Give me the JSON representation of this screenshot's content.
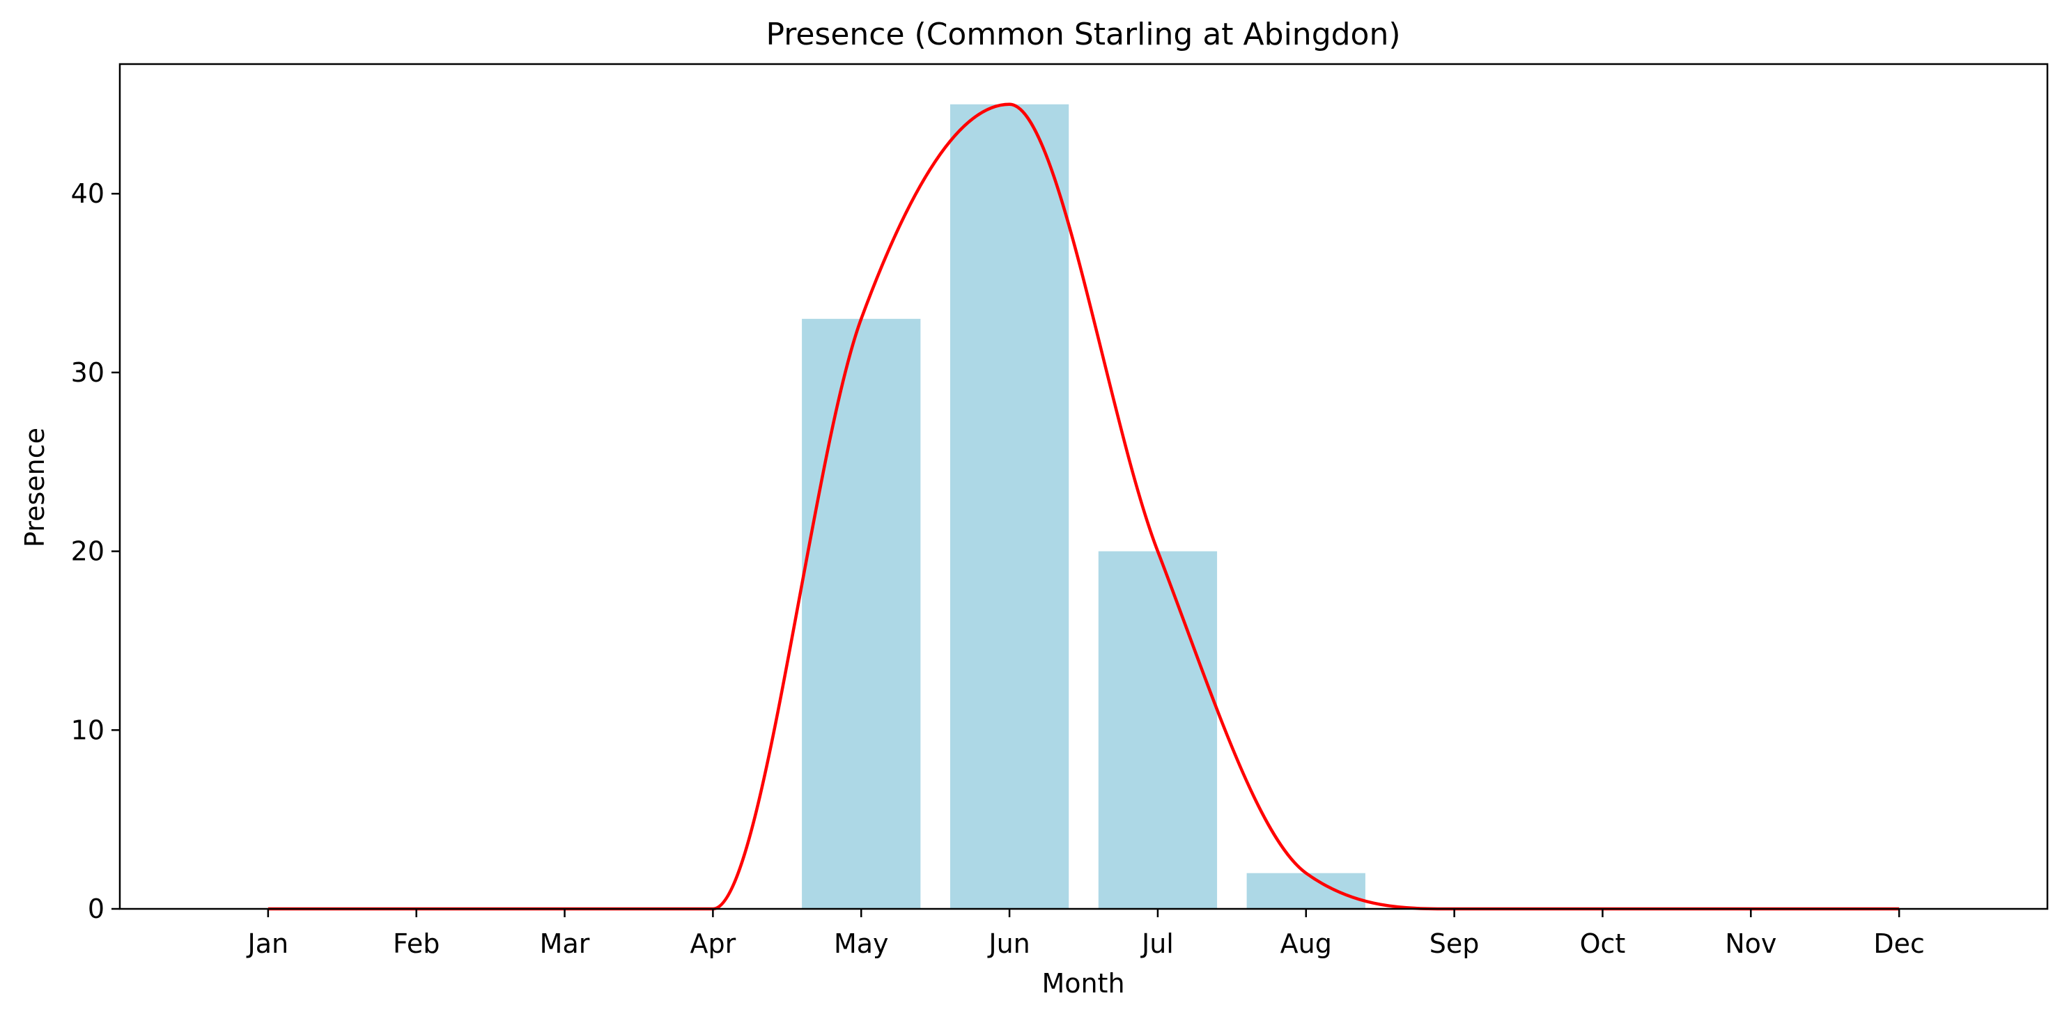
{
  "chart_data": {
    "type": "bar",
    "title": "Presence (Common Starling at Abingdon)",
    "xlabel": "Month",
    "ylabel": "Presence",
    "categories": [
      "Jan",
      "Feb",
      "Mar",
      "Apr",
      "May",
      "Jun",
      "Jul",
      "Aug",
      "Sep",
      "Oct",
      "Nov",
      "Dec"
    ],
    "values": [
      0,
      0,
      0,
      0,
      33,
      45,
      20,
      2,
      0,
      0,
      0,
      0
    ],
    "overlay": {
      "type": "line",
      "style": "smoothed curve through bar values",
      "values": [
        0,
        0,
        0,
        0,
        33,
        45,
        20,
        2,
        0,
        0,
        0,
        0
      ]
    },
    "xlim": [
      -1,
      12
    ],
    "ylim": [
      0,
      47.25
    ],
    "yticks": [
      0,
      10,
      20,
      30,
      40
    ],
    "grid": false,
    "legend": "none",
    "colors": {
      "bar": "#add8e6",
      "line": "#ff0000"
    }
  }
}
